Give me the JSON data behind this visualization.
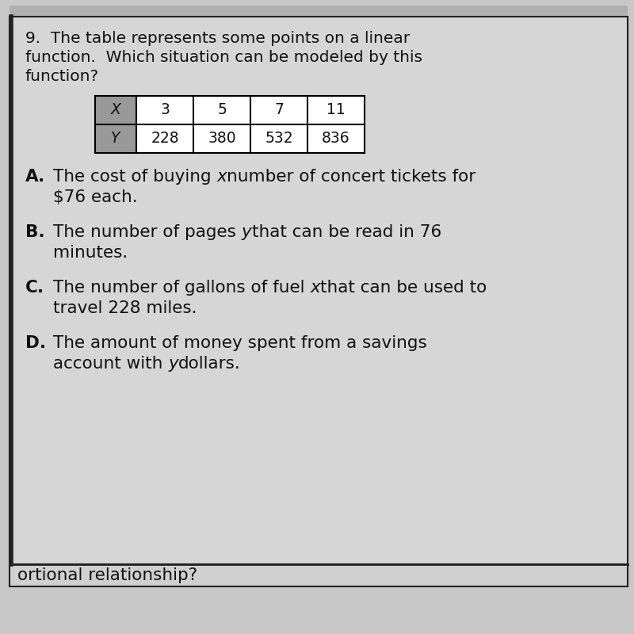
{
  "title_line1": "9.  The table represents some points on a linear",
  "title_line2": "function.  Which situation can be modeled by this",
  "title_line3": "function?",
  "table_headers": [
    "X",
    "3",
    "5",
    "7",
    "11"
  ],
  "table_row2": [
    "Y",
    "228",
    "380",
    "532",
    "836"
  ],
  "header_bg": "#999999",
  "option_A_label": "A.",
  "option_A_pre": "The cost of buying ",
  "option_A_italic": "x",
  "option_A_post": "number of concert tickets for",
  "option_A_line2": "$76 each.",
  "option_B_label": "B.",
  "option_B_pre": "The number of pages ",
  "option_B_italic": "y",
  "option_B_post": "that can be read in 76",
  "option_B_line2": "minutes.",
  "option_C_label": "C.",
  "option_C_pre": "The number of gallons of fuel ",
  "option_C_italic": "x",
  "option_C_post": "that can be used to",
  "option_C_line2": "travel 228 miles.",
  "option_D_label": "D.",
  "option_D_pre": "The amount of money spent from a savings",
  "option_D_line2_pre": "account with ",
  "option_D_italic": "y",
  "option_D_line2_post": "dollars.",
  "footer_text": "ortional relationship?",
  "bg_color": "#c8c8c8",
  "panel_bg": "#d4d4d4",
  "border_color": "#222222",
  "text_color": "#111111",
  "font_size_title": 14.5,
  "font_size_table": 13.5,
  "font_size_options": 15.5
}
